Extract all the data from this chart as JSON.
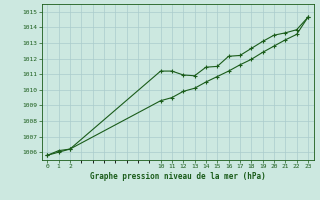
{
  "title": "Graphe pression niveau de la mer (hPa)",
  "background_color": "#cce8e0",
  "grid_color": "#aacccc",
  "line_color": "#1a5c1a",
  "xlim": [
    -0.5,
    23.5
  ],
  "ylim": [
    1005.5,
    1015.5
  ],
  "yticks": [
    1006,
    1007,
    1008,
    1009,
    1010,
    1011,
    1012,
    1013,
    1014,
    1015
  ],
  "xticks": [
    0,
    1,
    2,
    10,
    11,
    12,
    13,
    14,
    15,
    16,
    17,
    18,
    19,
    20,
    21,
    22,
    23
  ],
  "line1_x": [
    0,
    1,
    2,
    10,
    11,
    12,
    13,
    14,
    15,
    16,
    17,
    18,
    19,
    20,
    21,
    22,
    23
  ],
  "line1_y": [
    1005.8,
    1006.1,
    1006.2,
    1011.2,
    1011.2,
    1010.95,
    1010.9,
    1011.45,
    1011.5,
    1012.15,
    1012.2,
    1012.65,
    1013.1,
    1013.5,
    1013.65,
    1013.85,
    1014.65
  ],
  "line2_x": [
    0,
    1,
    2,
    10,
    11,
    12,
    13,
    14,
    15,
    16,
    17,
    18,
    19,
    20,
    21,
    22,
    23
  ],
  "line2_y": [
    1005.8,
    1006.0,
    1006.2,
    1009.3,
    1009.5,
    1009.9,
    1010.1,
    1010.5,
    1010.85,
    1011.2,
    1011.6,
    1011.95,
    1012.4,
    1012.8,
    1013.2,
    1013.55,
    1014.65
  ]
}
